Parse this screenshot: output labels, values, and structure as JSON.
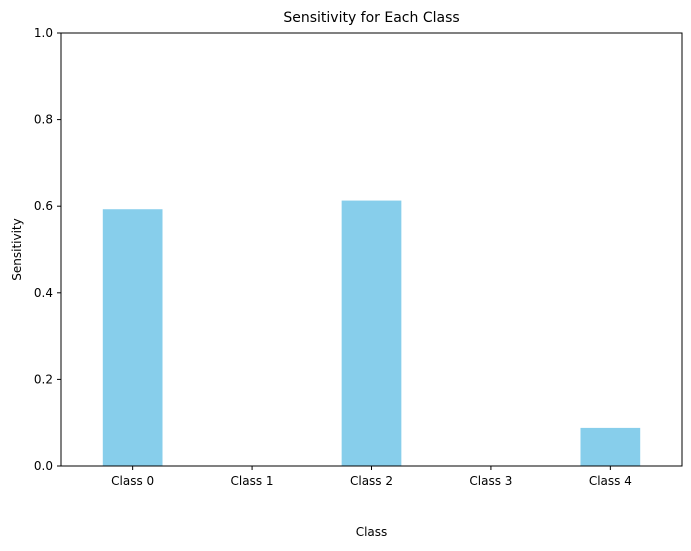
{
  "chart_data": {
    "type": "bar",
    "title": "Sensitivity for Each Class",
    "xlabel": "Class",
    "ylabel": "Sensitivity",
    "categories": [
      "Class 0",
      "Class 1",
      "Class 2",
      "Class 3",
      "Class 4"
    ],
    "values": [
      0.593,
      0.0,
      0.613,
      0.0,
      0.088
    ],
    "ylim": [
      0,
      1
    ],
    "yticks": [
      "0.0",
      "0.2",
      "0.4",
      "0.6",
      "0.8",
      "1.0"
    ],
    "grid": false,
    "legend": "none",
    "colors": {
      "bar": "#87ceeb",
      "axis": "#000000"
    }
  }
}
